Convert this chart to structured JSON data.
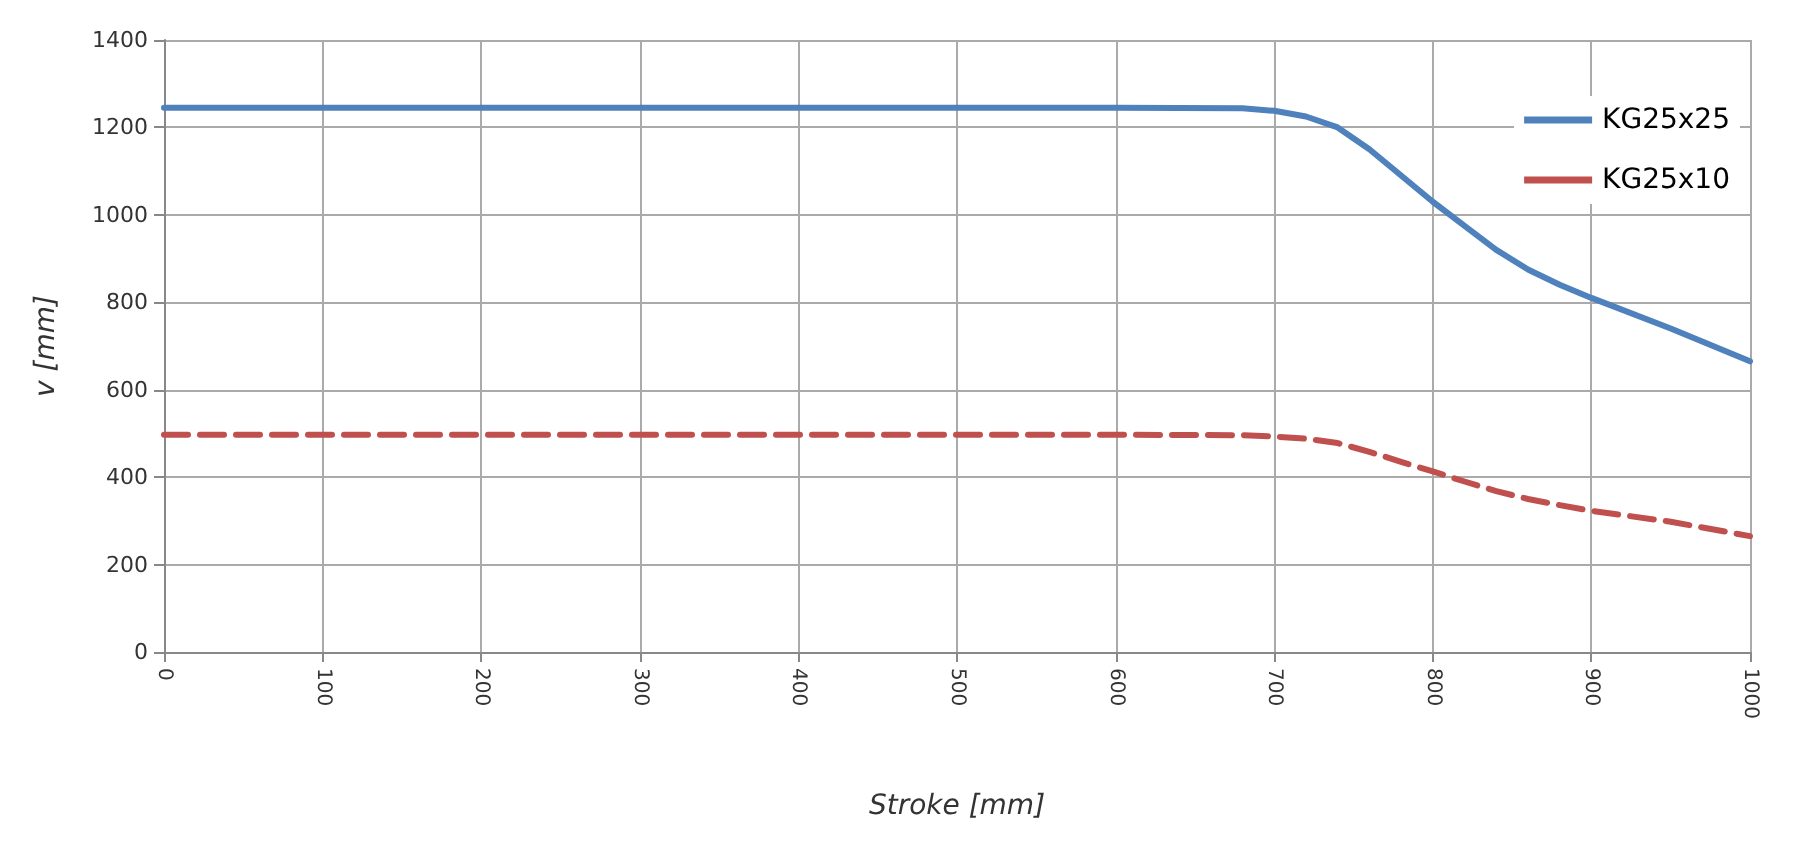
{
  "chart_data": {
    "type": "line",
    "xlabel": "Stroke [mm]",
    "ylabel": "v [mm]",
    "x": [
      0,
      100,
      200,
      300,
      400,
      500,
      600,
      680,
      700,
      720,
      740,
      760,
      780,
      800,
      820,
      840,
      860,
      880,
      900,
      950,
      1000
    ],
    "series": [
      {
        "name": "KG25x25",
        "color": "#4f81bd",
        "line_style": "solid",
        "values": [
          1245,
          1245,
          1245,
          1245,
          1245,
          1245,
          1245,
          1244,
          1238,
          1225,
          1200,
          1150,
          1090,
          1030,
          975,
          920,
          875,
          840,
          810,
          740,
          665
        ]
      },
      {
        "name": "KG25x10",
        "color": "#c0504d",
        "line_style": "dashed",
        "values": [
          497,
          497,
          497,
          497,
          497,
          497,
          497,
          496,
          493,
          488,
          478,
          458,
          435,
          413,
          390,
          368,
          350,
          336,
          323,
          298,
          265
        ]
      }
    ],
    "xlim": [
      0,
      1000
    ],
    "xticks": [
      0,
      100,
      200,
      300,
      400,
      500,
      600,
      700,
      800,
      900,
      1000
    ],
    "ylim": [
      0,
      1400
    ],
    "yticks": [
      0,
      200,
      400,
      600,
      800,
      1000,
      1200,
      1400
    ],
    "grid": true,
    "legend": "top right",
    "marker": "none"
  }
}
